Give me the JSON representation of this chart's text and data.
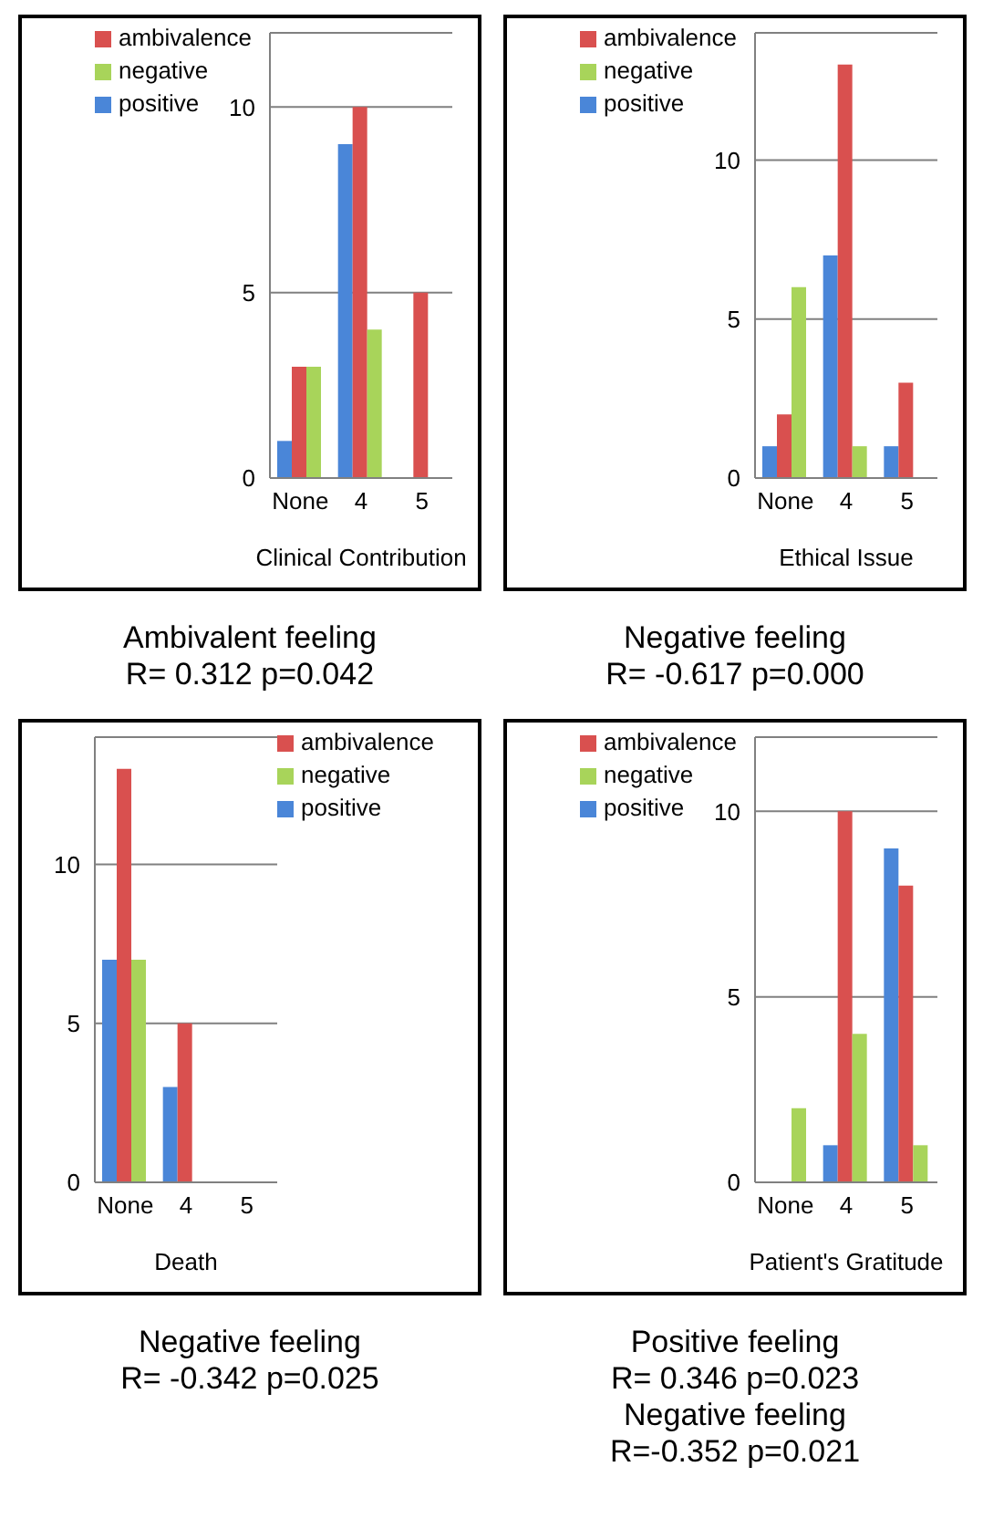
{
  "chart_data": [
    {
      "type": "bar",
      "categories": [
        "None",
        "4",
        "5"
      ],
      "xlabel": "Clinical Contribution",
      "ylim": [
        0,
        12
      ],
      "yticks": [
        0,
        5,
        10
      ],
      "grid": "y",
      "legend": "top left",
      "series": [
        {
          "name": "positive",
          "color": "#4a86d8",
          "values": [
            1,
            9,
            null
          ]
        },
        {
          "name": "ambivalence",
          "color": "#d9504f",
          "values": [
            3,
            10,
            5
          ]
        },
        {
          "name": "negative",
          "color": "#a8d45a",
          "values": [
            3,
            4,
            null
          ]
        }
      ],
      "annotations": [
        "Ambivalent feeling",
        "R= 0.312 p=0.042"
      ]
    },
    {
      "type": "bar",
      "categories": [
        "None",
        "4",
        "5"
      ],
      "xlabel": "Ethical Issue",
      "ylim": [
        0,
        14
      ],
      "yticks": [
        0,
        5,
        10
      ],
      "grid": "y",
      "legend": "top left",
      "series": [
        {
          "name": "positive",
          "color": "#4a86d8",
          "values": [
            1,
            7,
            1
          ]
        },
        {
          "name": "ambivalence",
          "color": "#d9504f",
          "values": [
            2,
            13,
            3
          ]
        },
        {
          "name": "negative",
          "color": "#a8d45a",
          "values": [
            6,
            1,
            null
          ]
        }
      ],
      "annotations": [
        "Negative feeling",
        "R= -0.617 p=0.000"
      ]
    },
    {
      "type": "bar",
      "categories": [
        "None",
        "4",
        "5"
      ],
      "xlabel": "Death",
      "ylim": [
        0,
        14
      ],
      "yticks": [
        0,
        5,
        10
      ],
      "grid": "y",
      "legend": "top right",
      "series": [
        {
          "name": "positive",
          "color": "#4a86d8",
          "values": [
            7,
            3,
            null
          ]
        },
        {
          "name": "ambivalence",
          "color": "#d9504f",
          "values": [
            13,
            5,
            null
          ]
        },
        {
          "name": "negative",
          "color": "#a8d45a",
          "values": [
            7,
            null,
            null
          ]
        }
      ],
      "annotations": [
        "Negative feeling",
        "R= -0.342 p=0.025"
      ]
    },
    {
      "type": "bar",
      "categories": [
        "None",
        "4",
        "5"
      ],
      "xlabel": "Patient's Gratitude",
      "ylim": [
        0,
        12
      ],
      "yticks": [
        0,
        5,
        10
      ],
      "grid": "y",
      "legend": "top left",
      "series": [
        {
          "name": "positive",
          "color": "#4a86d8",
          "values": [
            null,
            1,
            9
          ]
        },
        {
          "name": "ambivalence",
          "color": "#d9504f",
          "values": [
            null,
            10,
            8
          ]
        },
        {
          "name": "negative",
          "color": "#a8d45a",
          "values": [
            2,
            4,
            1
          ]
        }
      ],
      "annotations": [
        "Positive feeling",
        "R= 0.346 p=0.023",
        "Negative feeling",
        "R=-0.352 p=0.021"
      ]
    }
  ]
}
